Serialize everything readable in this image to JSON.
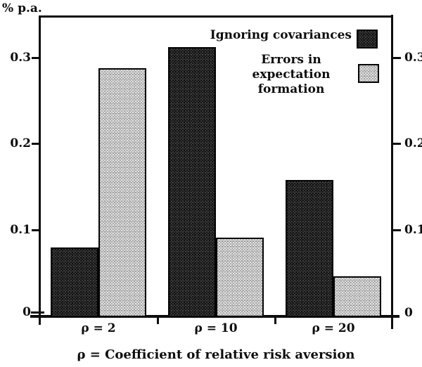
{
  "title": "% p.a.",
  "legend": {
    "items": [
      {
        "label": "Ignoring covariances",
        "swatch": "dark-crosshatch-swatch"
      },
      {
        "label": "Errors in expectation formation",
        "swatch": "light-stipple-swatch"
      }
    ]
  },
  "caption": "ρ = Coefficient of relative risk aversion",
  "colors": {
    "dark_series": "#232323",
    "light_series": "#c6c6c6",
    "axis": "#0d0d0d",
    "background": "#ffffff"
  },
  "chart_data": {
    "type": "bar",
    "title": "",
    "ylabel": "% p.a.",
    "xlabel": "ρ = Coefficient of relative risk aversion",
    "categories": [
      "ρ = 2",
      "ρ = 10",
      "ρ = 20"
    ],
    "series": [
      {
        "name": "Ignoring covariances",
        "key": "ignoring-covariances",
        "texture": "dark",
        "values": [
          0.079,
          0.312,
          0.158
        ]
      },
      {
        "name": "Errors in expectation formation",
        "key": "errors-in-expectation-formation",
        "texture": "light",
        "values": [
          0.288,
          0.091,
          0.046
        ]
      }
    ],
    "ylim": [
      0,
      0.35
    ],
    "y_ticks": [
      0,
      0.1,
      0.2,
      0.3
    ],
    "y_tick_labels": [
      "0",
      "0.1",
      "0.2",
      "0.3"
    ],
    "y_axis_sides": [
      "left",
      "right"
    ],
    "grid": false,
    "legend_position": "top-right-inside"
  }
}
